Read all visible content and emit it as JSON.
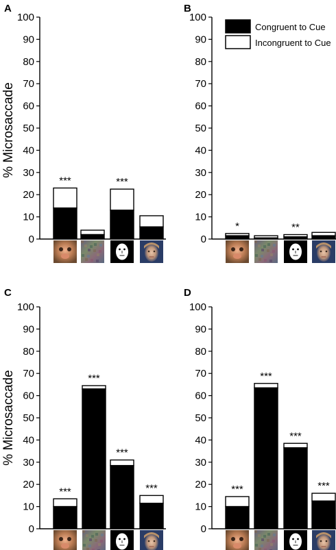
{
  "legend": {
    "congruent": "Congruent to Cue",
    "incongruent": "Incongruent to Cue"
  },
  "y_axis_label": "% Microsaccade",
  "stimuli": [
    "monkey-face-image",
    "scrambled-image",
    "cartoon-face-image",
    "human-face-image"
  ],
  "colors": {
    "congruent": "#000000",
    "incongruent": "#ffffff",
    "stroke": "#000000"
  },
  "chart_data": [
    {
      "panel": "A",
      "type": "bar",
      "stacked": true,
      "ylim": [
        0,
        100
      ],
      "yticks": [
        0,
        10,
        20,
        30,
        40,
        50,
        60,
        70,
        80,
        90,
        100
      ],
      "ylabel": "% Microsaccade",
      "series": [
        {
          "name": "Congruent to Cue",
          "values": [
            14,
            2,
            13,
            5.5
          ]
        },
        {
          "name": "Incongruent to Cue",
          "values": [
            9,
            2,
            9.5,
            5
          ]
        }
      ],
      "significance": [
        "***",
        "",
        "***",
        ""
      ]
    },
    {
      "panel": "B",
      "type": "bar",
      "stacked": true,
      "ylim": [
        0,
        100
      ],
      "yticks": [
        0,
        10,
        20,
        30,
        40,
        50,
        60,
        70,
        80,
        90,
        100
      ],
      "series": [
        {
          "name": "Congruent to Cue",
          "values": [
            1.5,
            0.5,
            1,
            1.5
          ]
        },
        {
          "name": "Incongruent to Cue",
          "values": [
            1,
            1,
            1,
            1.5
          ]
        }
      ],
      "significance": [
        "*",
        "",
        "**",
        ""
      ]
    },
    {
      "panel": "C",
      "type": "bar",
      "stacked": true,
      "ylim": [
        0,
        100
      ],
      "yticks": [
        0,
        10,
        20,
        30,
        40,
        50,
        60,
        70,
        80,
        90,
        100
      ],
      "ylabel": "% Microsaccade",
      "series": [
        {
          "name": "Congruent to Cue",
          "values": [
            10,
            63,
            28.5,
            11.5
          ]
        },
        {
          "name": "Incongruent to Cue",
          "values": [
            3.5,
            1.5,
            2.5,
            3.5
          ]
        }
      ],
      "significance": [
        "***",
        "***",
        "***",
        "***"
      ]
    },
    {
      "panel": "D",
      "type": "bar",
      "stacked": true,
      "ylim": [
        0,
        100
      ],
      "yticks": [
        0,
        10,
        20,
        30,
        40,
        50,
        60,
        70,
        80,
        90,
        100
      ],
      "series": [
        {
          "name": "Congruent to Cue",
          "values": [
            10,
            63.5,
            36.5,
            12.5
          ]
        },
        {
          "name": "Incongruent to Cue",
          "values": [
            4.5,
            2,
            2,
            3.5
          ]
        }
      ],
      "significance": [
        "***",
        "***",
        "***",
        "***"
      ]
    }
  ]
}
